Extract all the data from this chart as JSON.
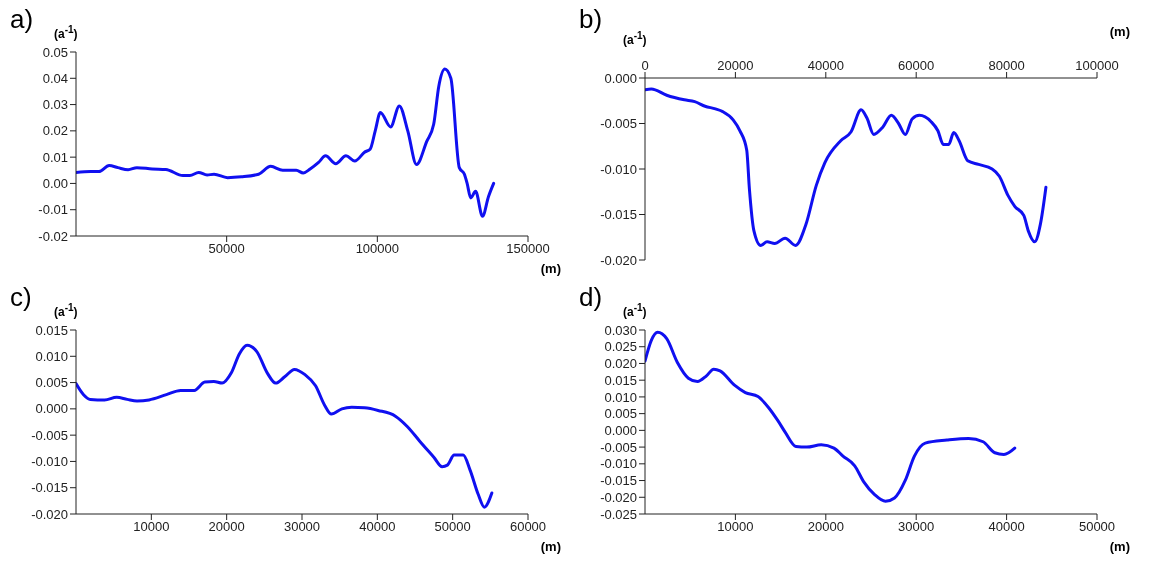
{
  "chart_data": [
    {
      "type": "line",
      "title": "a)",
      "ylabel": "(a$^{-1}$)",
      "xlabel": "(m)",
      "xlim": [
        0,
        150000
      ],
      "xticks": [
        50000,
        100000,
        150000
      ],
      "ylim": [
        -0.02,
        0.05
      ],
      "yticks": [
        0.05,
        0.04,
        0.03,
        0.02,
        0.01,
        {
          "value": 0,
          "label": "0.00"
        },
        -0.01,
        -0.02
      ],
      "grid": false,
      "legend": false,
      "marker": "none",
      "line_style": "solid",
      "series": [
        {
          "color": "#1010f0",
          "x": [
            0,
            4800,
            7600,
            11000,
            13900,
            17300,
            20200,
            25300,
            29800,
            35500,
            37800,
            40700,
            43500,
            45800,
            50300,
            54900,
            60600,
            64600,
            68600,
            73100,
            75400,
            77700,
            80500,
            82800,
            86200,
            89600,
            92500,
            95900,
            97600,
            99300,
            101000,
            104400,
            107300,
            110100,
            113000,
            116400,
            118700,
            120400,
            122400,
            124400,
            127200,
            128900,
            129800,
            131000,
            132600,
            134900,
            136900,
            138600
          ],
          "values": [
            0.0042,
            0.0045,
            0.0045,
            0.0068,
            0.006,
            0.0052,
            0.006,
            0.0055,
            0.0053,
            0.003,
            0.003,
            0.0042,
            0.0032,
            0.0035,
            0.0022,
            0.0025,
            0.0035,
            0.0065,
            0.005,
            0.005,
            0.004,
            0.0055,
            0.008,
            0.0105,
            0.0075,
            0.0105,
            0.0085,
            0.012,
            0.013,
            0.02,
            0.027,
            0.0215,
            0.0295,
            0.02,
            0.0072,
            0.016,
            0.0225,
            0.037,
            0.0435,
            0.04,
            0.006,
            0.0035,
            0.0,
            -0.0055,
            -0.003,
            -0.0125,
            -0.005,
            0.0
          ]
        }
      ]
    },
    {
      "type": "line",
      "title": "b)",
      "ylabel": "(a$^{-1}$)",
      "xlabel": "(m)",
      "xlim": [
        0,
        100000
      ],
      "xticks": [
        0,
        20000,
        40000,
        60000,
        80000,
        100000
      ],
      "ylim": [
        -0.02,
        0
      ],
      "yticks": [
        {
          "value": 0,
          "label": "0.000"
        },
        -0.005,
        {
          "value": -0.01,
          "label": "-0.010"
        },
        -0.015,
        {
          "value": -0.02,
          "label": "-0.020"
        }
      ],
      "grid": false,
      "legend": false,
      "marker": "none",
      "line_style": "solid",
      "series": [
        {
          "color": "#1010f0",
          "x": [
            0,
            1400,
            4800,
            8700,
            11000,
            13300,
            15600,
            17200,
            19500,
            21000,
            22500,
            23100,
            24100,
            25600,
            27000,
            28700,
            31000,
            33300,
            35600,
            37900,
            39800,
            43300,
            45600,
            47800,
            49100,
            50600,
            52600,
            54500,
            56100,
            57600,
            59100,
            60700,
            63300,
            64800,
            66000,
            67200,
            68300,
            69500,
            71400,
            73800,
            76800,
            78400,
            80300,
            81800,
            83800,
            84800,
            86200,
            87500,
            88700
          ],
          "values": [
            -0.0013,
            -0.0012,
            -0.0019,
            -0.0024,
            -0.0026,
            -0.0031,
            -0.0034,
            -0.0037,
            -0.0046,
            -0.0058,
            -0.0079,
            -0.0122,
            -0.0168,
            -0.0184,
            -0.018,
            -0.0182,
            -0.0176,
            -0.0184,
            -0.0161,
            -0.0118,
            -0.0093,
            -0.0069,
            -0.0059,
            -0.0035,
            -0.0044,
            -0.0062,
            -0.0054,
            -0.0041,
            -0.005,
            -0.0062,
            -0.0045,
            -0.0041,
            -0.0048,
            -0.0058,
            -0.0073,
            -0.0073,
            -0.006,
            -0.0069,
            -0.0091,
            -0.0095,
            -0.01,
            -0.0108,
            -0.0129,
            -0.0141,
            -0.0151,
            -0.0168,
            -0.018,
            -0.016,
            -0.012
          ]
        }
      ]
    },
    {
      "type": "line",
      "title": "c)",
      "ylabel": "(a$^{-1}$)",
      "xlabel": "(m)",
      "xlim": [
        0,
        60000
      ],
      "xticks": [
        10000,
        20000,
        30000,
        40000,
        50000,
        60000
      ],
      "ylim": [
        -0.02,
        0.015
      ],
      "yticks": [
        0.015,
        {
          "value": 0.01,
          "label": "0.010"
        },
        0.005,
        {
          "value": 0,
          "label": "0.000"
        },
        -0.005,
        {
          "value": -0.01,
          "label": "-0.010"
        },
        -0.015,
        {
          "value": -0.02,
          "label": "-0.020"
        }
      ],
      "grid": false,
      "legend": false,
      "marker": "none",
      "line_style": "solid",
      "series": [
        {
          "color": "#1010f0",
          "x": [
            0,
            1000,
            1900,
            3800,
            5400,
            6800,
            8100,
            9700,
            12000,
            13900,
            15700,
            17100,
            18300,
            19400,
            20600,
            21700,
            22700,
            24000,
            25400,
            26500,
            27700,
            29000,
            30400,
            31800,
            33000,
            33900,
            35300,
            36600,
            38300,
            40100,
            42400,
            44000,
            45600,
            47500,
            48600,
            49300,
            50200,
            51400,
            52300,
            53400,
            54200,
            55200
          ],
          "values": [
            0.0048,
            0.0027,
            0.0018,
            0.0017,
            0.0022,
            0.0018,
            0.0015,
            0.0017,
            0.0027,
            0.0035,
            0.0035,
            0.0051,
            0.0052,
            0.0049,
            0.0068,
            0.0105,
            0.0121,
            0.0109,
            0.0068,
            0.0049,
            0.0061,
            0.0075,
            0.0065,
            0.0044,
            0.0007,
            -0.001,
            0.0,
            0.0003,
            0.0002,
            -0.0003,
            -0.0014,
            -0.0034,
            -0.0061,
            -0.0092,
            -0.011,
            -0.0107,
            -0.0088,
            -0.0088,
            -0.0116,
            -0.0163,
            -0.0187,
            -0.016
          ]
        }
      ]
    },
    {
      "type": "line",
      "title": "d)",
      "ylabel": "(a$^{-1}$)",
      "xlabel": "(m)",
      "xlim": [
        0,
        50000
      ],
      "xticks": [
        10000,
        20000,
        30000,
        40000,
        50000
      ],
      "ylim": [
        -0.025,
        0.03
      ],
      "yticks": [
        {
          "value": 0.03,
          "label": "0.030"
        },
        0.025,
        {
          "value": 0.02,
          "label": "0.020"
        },
        0.015,
        {
          "value": 0.01,
          "label": "0.010"
        },
        0.005,
        {
          "value": 0,
          "label": "0.000"
        },
        -0.005,
        {
          "value": -0.01,
          "label": "-0.010"
        },
        -0.015,
        {
          "value": -0.02,
          "label": "-0.020"
        },
        -0.025
      ],
      "grid": false,
      "legend": false,
      "marker": "none",
      "line_style": "solid",
      "series": [
        {
          "color": "#1010f0",
          "x": [
            0,
            700,
            1400,
            2400,
            3600,
            4800,
            5800,
            6800,
            7600,
            8300,
            9900,
            11100,
            12500,
            13700,
            14700,
            15500,
            16700,
            17900,
            19500,
            20900,
            21900,
            23200,
            24200,
            25400,
            26600,
            27600,
            28800,
            29800,
            31000,
            33400,
            35800,
            37400,
            38700,
            39700,
            40900
          ],
          "values": [
            0.0207,
            0.0269,
            0.0293,
            0.0274,
            0.0202,
            0.0156,
            0.0146,
            0.0163,
            0.0183,
            0.0178,
            0.0135,
            0.0113,
            0.0101,
            0.0067,
            0.0029,
            -0.0005,
            -0.0048,
            -0.005,
            -0.0043,
            -0.0053,
            -0.0077,
            -0.0106,
            -0.0154,
            -0.0192,
            -0.0212,
            -0.0202,
            -0.0149,
            -0.0077,
            -0.0038,
            -0.0029,
            -0.0024,
            -0.0034,
            -0.0067,
            -0.0072,
            -0.0053
          ]
        }
      ]
    }
  ]
}
